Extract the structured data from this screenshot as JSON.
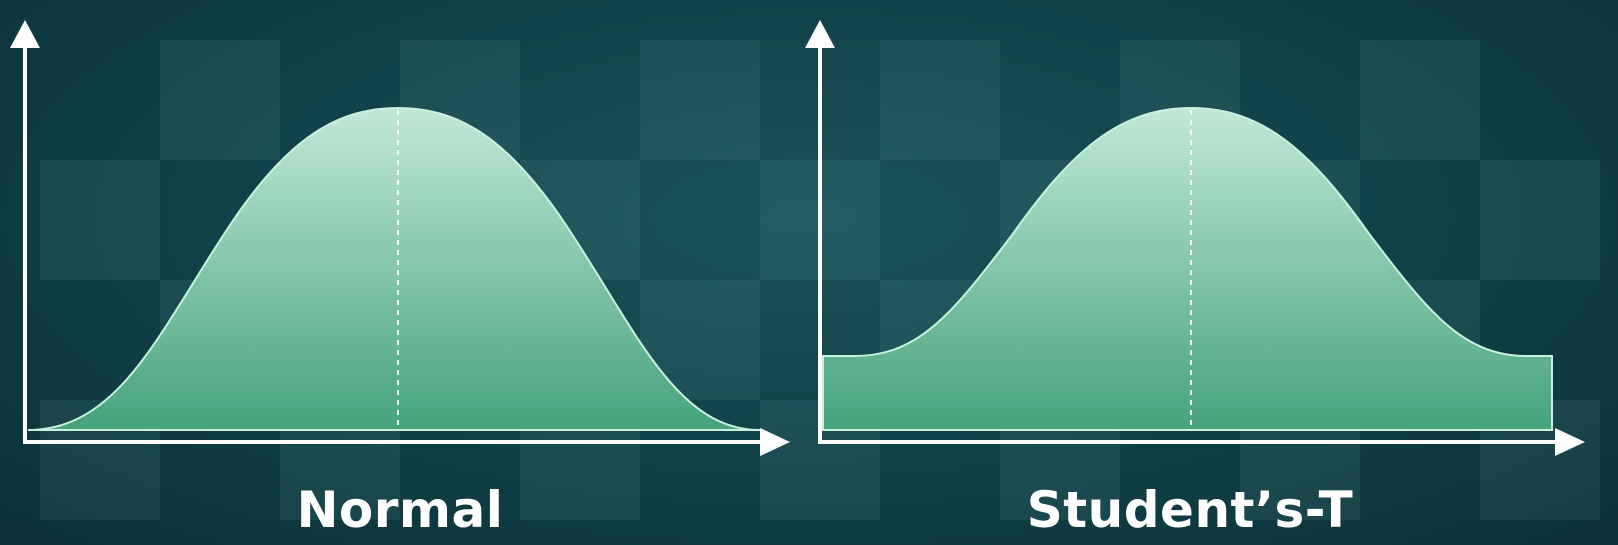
{
  "panels": [
    {
      "label": "Normal",
      "distribution": "normal"
    },
    {
      "label": "Student’s-T",
      "distribution": "students-t"
    }
  ],
  "colors": {
    "background": "#114047",
    "curve_fill_top": "#b9e3d2",
    "curve_fill_bottom": "#47a57d",
    "curve_stroke": "#c8f0df",
    "axis": "#ffffff",
    "caption": "#ffffff"
  }
}
